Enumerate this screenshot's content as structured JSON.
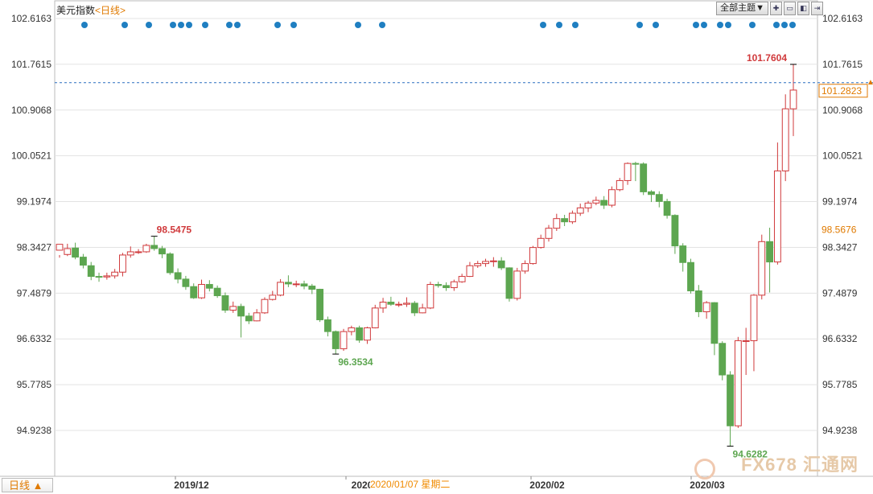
{
  "header": {
    "title": "美元指数",
    "period_link": "<日线>",
    "theme_button": "全部主题▼",
    "icons": [
      "zoom-in-icon",
      "zoom-out-icon",
      "fit-icon",
      "jump-right-icon"
    ]
  },
  "footer": {
    "period_tab": "日线 ▲",
    "cursor_label": "2020/01/07 星期二"
  },
  "watermark": "FX678 汇通网",
  "colors": {
    "up": "#d0393b",
    "down": "#5da650",
    "grid": "#e3e3e3",
    "dots": "#1f7fc1",
    "last_price": "#e07a00",
    "low_label": "#5da650"
  },
  "chart_data": {
    "type": "candlestick",
    "y_ticks": [
      "102.6163",
      "101.7615",
      "100.9068",
      "100.0521",
      "99.1974",
      "98.3427",
      "97.4879",
      "96.6332",
      "95.7785",
      "94.9238"
    ],
    "ylim": [
      94.42,
      102.9
    ],
    "x_labels": [
      "2019/12",
      "2020",
      "2020/02",
      "2020/03"
    ],
    "last_price": "101.2823",
    "cursor_price": "98.5676",
    "annotations": [
      {
        "text": "98.5475",
        "type": "high"
      },
      {
        "text": "96.3534",
        "type": "low"
      },
      {
        "text": "101.7604",
        "type": "high"
      },
      {
        "text": "94.6282",
        "type": "low"
      }
    ],
    "candles": [
      [
        98.29,
        98.4,
        98.2,
        98.15
      ],
      [
        98.21,
        98.32,
        98.41,
        98.18
      ],
      [
        98.33,
        98.16,
        98.43,
        98.12
      ],
      [
        98.16,
        98.01,
        98.22,
        97.95
      ],
      [
        98.0,
        97.8,
        98.07,
        97.73
      ],
      [
        97.8,
        97.79,
        97.87,
        97.7
      ],
      [
        97.79,
        97.81,
        97.87,
        97.74
      ],
      [
        97.81,
        97.88,
        97.94,
        97.76
      ],
      [
        97.88,
        98.2,
        98.24,
        97.8
      ],
      [
        98.2,
        98.26,
        98.36,
        98.15
      ],
      [
        98.26,
        98.26,
        98.31,
        98.22
      ],
      [
        98.26,
        98.38,
        98.41,
        98.24
      ],
      [
        98.38,
        98.32,
        98.55,
        98.28
      ],
      [
        98.32,
        98.22,
        98.37,
        98.14
      ],
      [
        98.22,
        97.87,
        98.25,
        97.83
      ],
      [
        97.87,
        97.75,
        97.95,
        97.67
      ],
      [
        97.75,
        97.61,
        97.81,
        97.55
      ],
      [
        97.61,
        97.4,
        97.67,
        97.38
      ],
      [
        97.4,
        97.65,
        97.74,
        97.38
      ],
      [
        97.65,
        97.58,
        97.73,
        97.52
      ],
      [
        97.58,
        97.44,
        97.63,
        97.4
      ],
      [
        97.44,
        97.17,
        97.5,
        97.12
      ],
      [
        97.17,
        97.24,
        97.33,
        97.12
      ],
      [
        97.24,
        97.06,
        97.29,
        96.66
      ],
      [
        97.06,
        96.97,
        97.12,
        96.91
      ],
      [
        96.97,
        97.12,
        97.19,
        96.96
      ],
      [
        97.12,
        97.37,
        97.41,
        97.1
      ],
      [
        97.37,
        97.45,
        97.53,
        97.35
      ],
      [
        97.45,
        97.69,
        97.75,
        97.43
      ],
      [
        97.69,
        97.66,
        97.82,
        97.6
      ],
      [
        97.66,
        97.66,
        97.72,
        97.6
      ],
      [
        97.66,
        97.62,
        97.72,
        97.56
      ],
      [
        97.62,
        97.56,
        97.66,
        97.47
      ],
      [
        97.56,
        96.99,
        97.57,
        96.95
      ],
      [
        96.99,
        96.77,
        97.05,
        96.68
      ],
      [
        96.77,
        96.45,
        96.79,
        96.35
      ],
      [
        96.45,
        96.77,
        96.82,
        96.41
      ],
      [
        96.77,
        96.84,
        96.88,
        96.7
      ],
      [
        96.84,
        96.61,
        96.88,
        96.56
      ],
      [
        96.61,
        96.84,
        96.86,
        96.54
      ],
      [
        96.84,
        97.21,
        97.27,
        96.83
      ],
      [
        97.21,
        97.32,
        97.4,
        97.12
      ],
      [
        97.32,
        97.28,
        97.42,
        97.25
      ],
      [
        97.28,
        97.28,
        97.33,
        97.23
      ],
      [
        97.28,
        97.3,
        97.41,
        97.23
      ],
      [
        97.3,
        97.12,
        97.34,
        97.06
      ],
      [
        97.12,
        97.21,
        97.29,
        97.11
      ],
      [
        97.21,
        97.65,
        97.7,
        97.19
      ],
      [
        97.65,
        97.63,
        97.7,
        97.59
      ],
      [
        97.63,
        97.59,
        97.69,
        97.53
      ],
      [
        97.59,
        97.7,
        97.74,
        97.53
      ],
      [
        97.7,
        97.8,
        97.85,
        97.68
      ],
      [
        97.8,
        98.0,
        98.07,
        97.79
      ],
      [
        98.0,
        98.04,
        98.09,
        97.96
      ],
      [
        98.04,
        98.08,
        98.13,
        97.98
      ],
      [
        98.08,
        98.09,
        98.16,
        97.98
      ],
      [
        98.09,
        97.96,
        98.16,
        97.92
      ],
      [
        97.96,
        97.39,
        97.97,
        97.33
      ],
      [
        97.39,
        97.9,
        97.96,
        97.35
      ],
      [
        97.9,
        98.04,
        98.1,
        97.85
      ],
      [
        98.04,
        98.34,
        98.37,
        98.02
      ],
      [
        98.34,
        98.51,
        98.58,
        98.32
      ],
      [
        98.51,
        98.7,
        98.76,
        98.45
      ],
      [
        98.7,
        98.88,
        98.97,
        98.65
      ],
      [
        98.88,
        98.82,
        98.95,
        98.74
      ],
      [
        98.82,
        98.98,
        99.03,
        98.78
      ],
      [
        98.98,
        99.08,
        99.16,
        98.93
      ],
      [
        99.08,
        99.17,
        99.21,
        99.0
      ],
      [
        99.17,
        99.22,
        99.29,
        99.13
      ],
      [
        99.22,
        99.13,
        99.3,
        99.06
      ],
      [
        99.13,
        99.42,
        99.48,
        99.09
      ],
      [
        99.42,
        99.59,
        99.64,
        99.39
      ],
      [
        99.59,
        99.91,
        99.93,
        99.51
      ],
      [
        99.91,
        99.9,
        99.94,
        99.58
      ],
      [
        99.9,
        99.38,
        99.93,
        99.32
      ],
      [
        99.38,
        99.33,
        99.41,
        99.19
      ],
      [
        99.33,
        99.2,
        99.39,
        99.09
      ],
      [
        99.2,
        98.94,
        99.25,
        98.88
      ],
      [
        98.94,
        98.37,
        98.96,
        98.22
      ],
      [
        98.37,
        98.06,
        98.42,
        97.89
      ],
      [
        98.06,
        97.53,
        98.13,
        97.48
      ],
      [
        97.53,
        97.14,
        97.64,
        97.04
      ],
      [
        97.14,
        97.31,
        97.34,
        97.01
      ],
      [
        97.31,
        96.55,
        97.32,
        96.33
      ],
      [
        96.55,
        95.96,
        96.59,
        95.86
      ],
      [
        95.96,
        95.01,
        96.03,
        94.63
      ],
      [
        95.01,
        96.6,
        96.67,
        94.97
      ],
      [
        96.6,
        96.6,
        96.84,
        95.96
      ],
      [
        96.6,
        97.45,
        97.47,
        96.03
      ],
      [
        97.45,
        98.45,
        98.58,
        97.37
      ],
      [
        98.45,
        98.07,
        98.71,
        97.5
      ],
      [
        98.07,
        99.77,
        100.3,
        98.02
      ],
      [
        99.77,
        100.93,
        101.2,
        99.58
      ],
      [
        100.93,
        101.28,
        101.76,
        100.42
      ]
    ],
    "event_dot_positions": [
      0,
      3,
      6,
      8,
      9,
      10,
      12,
      14,
      15,
      18,
      19,
      24,
      27,
      39,
      40,
      41,
      48,
      49,
      52,
      53,
      54,
      57,
      59,
      60
    ]
  }
}
